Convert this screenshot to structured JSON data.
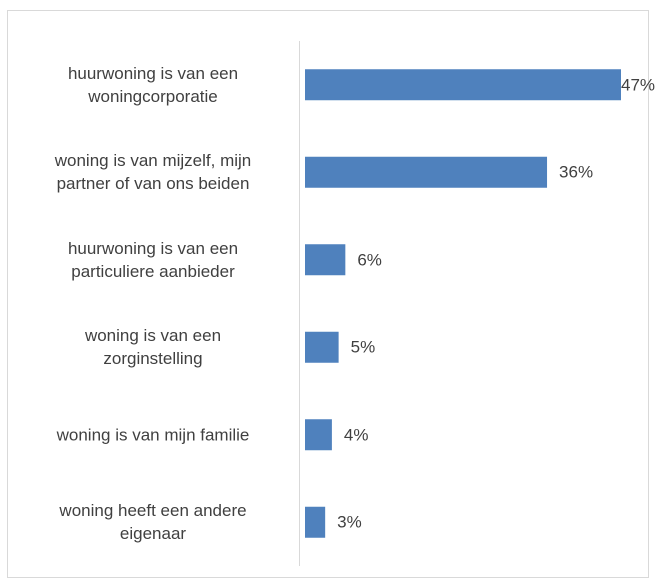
{
  "chart_data": {
    "type": "bar",
    "orientation": "horizontal",
    "categories": [
      "huurwoning is van een\nwoningcorporatie",
      "woning is van mijzelf, mijn\npartner of van ons beiden",
      "huurwoning is van een\nparticuliere aanbieder",
      "woning is van een\nzorginstelling",
      "woning is van mijn familie",
      "woning heeft een andere\neigenaar"
    ],
    "values": [
      47,
      36,
      6,
      5,
      4,
      3
    ],
    "value_labels": [
      "47%",
      "36%",
      "6%",
      "5%",
      "4%",
      "3%"
    ],
    "color": "#4f81bd"
  }
}
